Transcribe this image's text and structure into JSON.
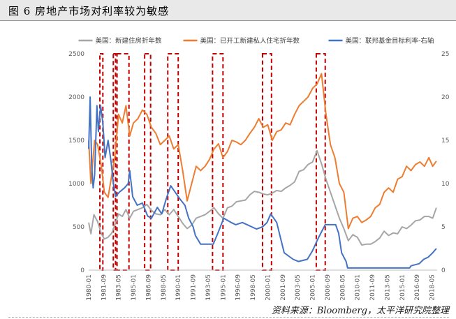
{
  "caption": {
    "label": "图 6",
    "title": "房地产市场对利率较为敏感"
  },
  "source": "资料来源：Bloomberg，太平洋研究院整理",
  "chart_data": {
    "type": "line",
    "left_axis": {
      "ticks": [
        0,
        500,
        1000,
        1500,
        2000,
        2500
      ],
      "ylim": [
        0,
        2500
      ]
    },
    "right_axis": {
      "ticks": [
        0,
        5,
        10,
        15,
        20,
        25
      ],
      "ylim": [
        0,
        25
      ]
    },
    "x_range": [
      "1980-01",
      "2018-12"
    ],
    "x_ticks": [
      "1980-01",
      "1981-09",
      "1983-05",
      "1985-01",
      "1986-09",
      "1988-05",
      "1990-01",
      "1991-09",
      "1993-05",
      "1995-01",
      "1996-09",
      "1998-05",
      "2000-01",
      "2001-09",
      "2003-05",
      "2005-01",
      "2006-09",
      "2008-05",
      "2010-01",
      "2011-09",
      "2013-05",
      "2015-01",
      "2016-09",
      "2018-05"
    ],
    "legend_position": "top",
    "grid": false,
    "series": [
      {
        "name": "美国：新建住房折年数",
        "axis": "left",
        "color": "#a6a6a6",
        "points": [
          [
            "1980-01",
            550
          ],
          [
            "1980-04",
            420
          ],
          [
            "1980-08",
            640
          ],
          [
            "1981-01",
            560
          ],
          [
            "1981-06",
            420
          ],
          [
            "1981-10",
            360
          ],
          [
            "1982-03",
            380
          ],
          [
            "1982-08",
            430
          ],
          [
            "1982-12",
            520
          ],
          [
            "1983-05",
            650
          ],
          [
            "1983-10",
            620
          ],
          [
            "1984-03",
            700
          ],
          [
            "1984-08",
            600
          ],
          [
            "1985-01",
            680
          ],
          [
            "1985-07",
            700
          ],
          [
            "1986-01",
            720
          ],
          [
            "1986-07",
            760
          ],
          [
            "1987-01",
            690
          ],
          [
            "1987-07",
            650
          ],
          [
            "1988-01",
            640
          ],
          [
            "1988-07",
            700
          ],
          [
            "1989-01",
            640
          ],
          [
            "1989-07",
            700
          ],
          [
            "1990-01",
            620
          ],
          [
            "1990-07",
            540
          ],
          [
            "1991-01",
            480
          ],
          [
            "1991-07",
            520
          ],
          [
            "1992-01",
            600
          ],
          [
            "1992-07",
            620
          ],
          [
            "1993-01",
            640
          ],
          [
            "1993-07",
            680
          ],
          [
            "1994-01",
            720
          ],
          [
            "1994-07",
            650
          ],
          [
            "1995-01",
            600
          ],
          [
            "1995-07",
            720
          ],
          [
            "1996-01",
            740
          ],
          [
            "1996-07",
            790
          ],
          [
            "1997-01",
            800
          ],
          [
            "1997-07",
            810
          ],
          [
            "1998-01",
            870
          ],
          [
            "1998-07",
            910
          ],
          [
            "1999-01",
            900
          ],
          [
            "1999-07",
            880
          ],
          [
            "2000-01",
            870
          ],
          [
            "2000-07",
            890
          ],
          [
            "2001-01",
            920
          ],
          [
            "2001-07",
            910
          ],
          [
            "2002-01",
            950
          ],
          [
            "2002-07",
            980
          ],
          [
            "2003-01",
            1020
          ],
          [
            "2003-07",
            1140
          ],
          [
            "2004-01",
            1160
          ],
          [
            "2004-07",
            1220
          ],
          [
            "2005-01",
            1250
          ],
          [
            "2005-07",
            1380
          ],
          [
            "2006-01",
            1230
          ],
          [
            "2006-07",
            1050
          ],
          [
            "2007-01",
            900
          ],
          [
            "2007-07",
            750
          ],
          [
            "2008-01",
            600
          ],
          [
            "2008-07",
            480
          ],
          [
            "2009-01",
            340
          ],
          [
            "2009-07",
            410
          ],
          [
            "2010-01",
            380
          ],
          [
            "2010-07",
            290
          ],
          [
            "2011-01",
            300
          ],
          [
            "2011-07",
            300
          ],
          [
            "2012-01",
            330
          ],
          [
            "2012-07",
            370
          ],
          [
            "2013-01",
            450
          ],
          [
            "2013-07",
            400
          ],
          [
            "2014-01",
            430
          ],
          [
            "2014-07",
            420
          ],
          [
            "2015-01",
            500
          ],
          [
            "2015-07",
            480
          ],
          [
            "2016-01",
            520
          ],
          [
            "2016-07",
            570
          ],
          [
            "2017-01",
            580
          ],
          [
            "2017-07",
            620
          ],
          [
            "2018-01",
            620
          ],
          [
            "2018-06",
            600
          ],
          [
            "2018-11",
            720
          ]
        ]
      },
      {
        "name": "美国：已开工新建私人住宅折年数",
        "axis": "left",
        "color": "#ed7d31",
        "points": [
          [
            "1980-01",
            1500
          ],
          [
            "1980-04",
            1000
          ],
          [
            "1980-09",
            1500
          ],
          [
            "1981-01",
            1450
          ],
          [
            "1981-06",
            1200
          ],
          [
            "1981-10",
            900
          ],
          [
            "1982-03",
            840
          ],
          [
            "1982-08",
            1100
          ],
          [
            "1982-12",
            1300
          ],
          [
            "1983-05",
            1800
          ],
          [
            "1983-10",
            1700
          ],
          [
            "1984-03",
            1900
          ],
          [
            "1984-08",
            1550
          ],
          [
            "1985-01",
            1700
          ],
          [
            "1985-07",
            1750
          ],
          [
            "1986-01",
            1850
          ],
          [
            "1986-07",
            1800
          ],
          [
            "1987-01",
            1650
          ],
          [
            "1987-07",
            1580
          ],
          [
            "1988-01",
            1450
          ],
          [
            "1988-07",
            1500
          ],
          [
            "1989-01",
            1550
          ],
          [
            "1989-07",
            1400
          ],
          [
            "1990-01",
            1450
          ],
          [
            "1990-07",
            1150
          ],
          [
            "1991-01",
            800
          ],
          [
            "1991-07",
            1000
          ],
          [
            "1992-01",
            1200
          ],
          [
            "1992-07",
            1150
          ],
          [
            "1993-01",
            1200
          ],
          [
            "1993-07",
            1280
          ],
          [
            "1994-01",
            1400
          ],
          [
            "1994-07",
            1460
          ],
          [
            "1995-01",
            1300
          ],
          [
            "1995-07",
            1370
          ],
          [
            "1996-01",
            1500
          ],
          [
            "1996-07",
            1480
          ],
          [
            "1997-01",
            1450
          ],
          [
            "1997-07",
            1500
          ],
          [
            "1998-01",
            1580
          ],
          [
            "1998-07",
            1650
          ],
          [
            "1999-01",
            1750
          ],
          [
            "1999-07",
            1650
          ],
          [
            "2000-01",
            1680
          ],
          [
            "2000-07",
            1500
          ],
          [
            "2001-01",
            1600
          ],
          [
            "2001-07",
            1620
          ],
          [
            "2002-01",
            1700
          ],
          [
            "2002-07",
            1680
          ],
          [
            "2003-01",
            1800
          ],
          [
            "2003-07",
            1900
          ],
          [
            "2004-01",
            1950
          ],
          [
            "2004-07",
            2000
          ],
          [
            "2005-01",
            2100
          ],
          [
            "2005-07",
            2150
          ],
          [
            "2006-01",
            2270
          ],
          [
            "2006-07",
            1800
          ],
          [
            "2007-01",
            1450
          ],
          [
            "2007-07",
            1300
          ],
          [
            "2008-01",
            1000
          ],
          [
            "2008-07",
            900
          ],
          [
            "2009-01",
            480
          ],
          [
            "2009-07",
            600
          ],
          [
            "2010-01",
            620
          ],
          [
            "2010-07",
            550
          ],
          [
            "2011-01",
            580
          ],
          [
            "2011-07",
            620
          ],
          [
            "2012-01",
            720
          ],
          [
            "2012-07",
            760
          ],
          [
            "2013-01",
            900
          ],
          [
            "2013-07",
            950
          ],
          [
            "2014-01",
            900
          ],
          [
            "2014-07",
            1050
          ],
          [
            "2015-01",
            1080
          ],
          [
            "2015-07",
            1200
          ],
          [
            "2016-01",
            1150
          ],
          [
            "2016-07",
            1220
          ],
          [
            "2017-01",
            1250
          ],
          [
            "2017-07",
            1200
          ],
          [
            "2018-01",
            1300
          ],
          [
            "2018-06",
            1200
          ],
          [
            "2018-11",
            1260
          ]
        ]
      },
      {
        "name": "美国：联邦基金目标利率-右轴",
        "axis": "right",
        "color": "#4472c4",
        "points": [
          [
            "1980-01",
            14
          ],
          [
            "1980-03",
            20
          ],
          [
            "1980-05",
            12
          ],
          [
            "1980-07",
            9.5
          ],
          [
            "1980-09",
            11
          ],
          [
            "1980-12",
            19
          ],
          [
            "1981-02",
            16
          ],
          [
            "1981-05",
            19
          ],
          [
            "1981-08",
            17
          ],
          [
            "1981-11",
            13
          ],
          [
            "1982-03",
            15
          ],
          [
            "1982-07",
            12.5
          ],
          [
            "1982-10",
            10
          ],
          [
            "1983-01",
            8.5
          ],
          [
            "1983-06",
            9
          ],
          [
            "1984-01",
            9.5
          ],
          [
            "1984-06",
            10
          ],
          [
            "1984-08",
            11.5
          ],
          [
            "1984-10",
            10
          ],
          [
            "1984-12",
            8.5
          ],
          [
            "1985-06",
            7.5
          ],
          [
            "1986-01",
            7.75
          ],
          [
            "1986-08",
            6.25
          ],
          [
            "1987-01",
            6
          ],
          [
            "1987-09",
            7.25
          ],
          [
            "1988-03",
            6.5
          ],
          [
            "1988-09",
            8.25
          ],
          [
            "1989-03",
            9.75
          ],
          [
            "1989-09",
            9
          ],
          [
            "1990-03",
            8.25
          ],
          [
            "1990-10",
            7.5
          ],
          [
            "1991-03",
            6
          ],
          [
            "1991-09",
            5
          ],
          [
            "1991-12",
            4
          ],
          [
            "1992-07",
            3
          ],
          [
            "1993-12",
            3
          ],
          [
            "1994-06",
            4.25
          ],
          [
            "1995-02",
            6
          ],
          [
            "1995-12",
            5.5
          ],
          [
            "1996-06",
            5.25
          ],
          [
            "1997-03",
            5.5
          ],
          [
            "1998-10",
            4.75
          ],
          [
            "1999-06",
            5
          ],
          [
            "1999-12",
            5.5
          ],
          [
            "2000-05",
            6.5
          ],
          [
            "2001-01",
            5.5
          ],
          [
            "2001-06",
            3.75
          ],
          [
            "2001-11",
            2
          ],
          [
            "2002-11",
            1.25
          ],
          [
            "2003-06",
            1
          ],
          [
            "2004-06",
            1.25
          ],
          [
            "2005-01",
            2.25
          ],
          [
            "2005-09",
            3.75
          ],
          [
            "2006-06",
            5.25
          ],
          [
            "2007-08",
            5.25
          ],
          [
            "2007-12",
            4.25
          ],
          [
            "2008-04",
            2
          ],
          [
            "2008-10",
            1
          ],
          [
            "2008-12",
            0.25
          ],
          [
            "2015-11",
            0.25
          ],
          [
            "2016-01",
            0.5
          ],
          [
            "2016-12",
            0.75
          ],
          [
            "2017-06",
            1.25
          ],
          [
            "2017-12",
            1.5
          ],
          [
            "2018-06",
            2
          ],
          [
            "2018-11",
            2.5
          ]
        ]
      }
    ],
    "highlight_periods": [
      [
        "1981-04",
        "1981-08"
      ],
      [
        "1982-10",
        "1983-01"
      ],
      [
        "1983-03",
        "1984-07"
      ],
      [
        "1986-04",
        "1986-12"
      ],
      [
        "1988-11",
        "1990-01"
      ],
      [
        "1993-11",
        "1995-01"
      ],
      [
        "1999-06",
        "2000-06"
      ],
      [
        "2005-06",
        "2006-06"
      ]
    ]
  }
}
